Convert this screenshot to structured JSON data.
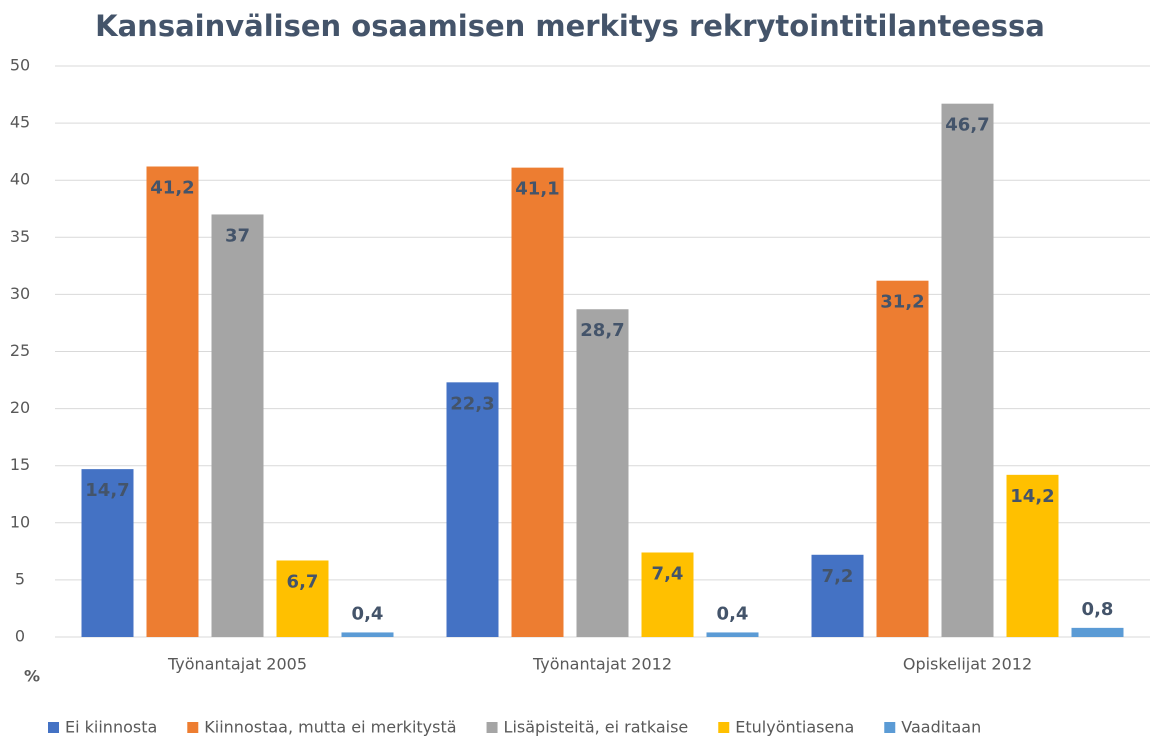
{
  "chart_data": {
    "type": "bar",
    "title": "Kansainvälisen osaamisen merkitys rekrytointitilanteessa",
    "y_label": "%",
    "categories": [
      "Työnantajat 2005",
      "Työnantajat 2012",
      "Opiskelijat 2012"
    ],
    "series": [
      {
        "name": "Ei kiinnosta",
        "color": "#4472c4",
        "values": [
          14.7,
          22.3,
          7.2
        ],
        "value_labels": [
          "14,7",
          "22,3",
          "7,2"
        ]
      },
      {
        "name": "Kiinnostaa, mutta ei merkitystä",
        "color": "#ed7d31",
        "values": [
          41.2,
          41.1,
          31.2
        ],
        "value_labels": [
          "41,2",
          "41,1",
          "31,2"
        ]
      },
      {
        "name": "Lisäpisteitä, ei ratkaise",
        "color": "#a5a5a5",
        "values": [
          37,
          28.7,
          46.7
        ],
        "value_labels": [
          "37",
          "28,7",
          "46,7"
        ]
      },
      {
        "name": "Etulyöntiasena",
        "color": "#ffc000",
        "values": [
          6.7,
          7.4,
          14.2
        ],
        "value_labels": [
          "6,7",
          "7,4",
          "14,2"
        ]
      },
      {
        "name": "Vaaditaan",
        "color": "#5b9bd5",
        "values": [
          0.4,
          0.4,
          0.8
        ],
        "value_labels": [
          "0,4",
          "0,4",
          "0,8"
        ]
      }
    ],
    "ylim": [
      0,
      50
    ],
    "yticks": [
      0,
      5,
      10,
      15,
      20,
      25,
      30,
      35,
      40,
      45,
      50
    ],
    "grid": true,
    "legend": "bottom"
  }
}
